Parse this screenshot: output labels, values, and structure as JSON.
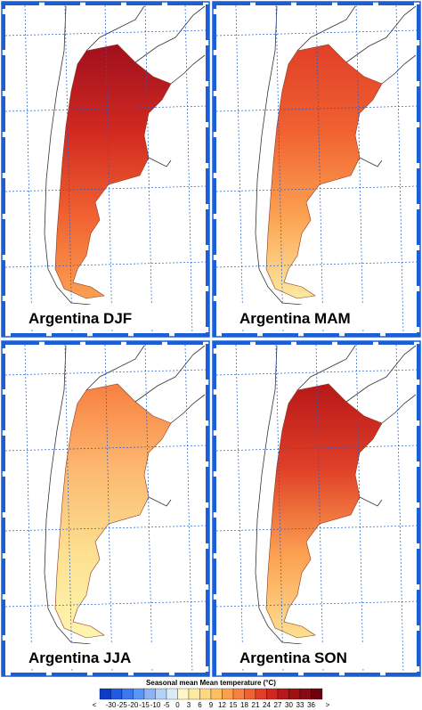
{
  "panels": [
    {
      "title": "Argentina DJF",
      "fill": [
        "#a0101e",
        "#d02820",
        "#f06030",
        "#fca050"
      ]
    },
    {
      "title": "Argentina MAM",
      "fill": [
        "#e04028",
        "#f06030",
        "#fca050",
        "#fde9a0"
      ]
    },
    {
      "title": "Argentina JJA",
      "fill": [
        "#f88040",
        "#fcb870",
        "#fde090",
        "#fff5b0"
      ]
    },
    {
      "title": "Argentina SON",
      "fill": [
        "#b81818",
        "#e04028",
        "#fca050",
        "#fde090"
      ]
    }
  ],
  "colorbar": {
    "title": "Seasonal mean Mean temperature (°C)",
    "labels": [
      "<",
      -30,
      -25,
      -20,
      -15,
      -10,
      -5,
      0,
      3,
      6,
      9,
      12,
      15,
      18,
      21,
      24,
      27,
      30,
      33,
      36,
      ">"
    ],
    "colors": [
      "#0a3cc8",
      "#1e5ae6",
      "#3c78f0",
      "#5a96f5",
      "#8cb4f5",
      "#b4d2f5",
      "#dceaf5",
      "#fff5c8",
      "#fde9a0",
      "#fdd880",
      "#fdc060",
      "#fca050",
      "#f88040",
      "#f06030",
      "#e04028",
      "#d02820",
      "#b81818",
      "#a01010",
      "#880a14",
      "#6e0010"
    ]
  }
}
